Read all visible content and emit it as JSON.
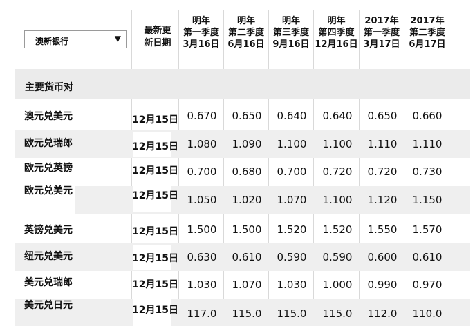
{
  "dropdown": {
    "selected": "澳新银行",
    "arrow_icon": "triangle-down-icon"
  },
  "headers": {
    "date": [
      "最新更",
      "新日期"
    ],
    "quarters": [
      [
        "明年",
        "第一季度",
        "3月16日"
      ],
      [
        "明年",
        "第二季度",
        "6月16日"
      ],
      [
        "明年",
        "第三季度",
        "9月16日"
      ],
      [
        "明年",
        "第四季度",
        "12月16日"
      ],
      [
        "2017年",
        "第一季度",
        "3月17日"
      ],
      [
        "2017年",
        "第二季度",
        "6月17日"
      ]
    ]
  },
  "section_label": "主要货币对",
  "rows": [
    {
      "pair": "澳元兑美元",
      "date": "12月15日",
      "values": [
        "0.670",
        "0.650",
        "0.640",
        "0.640",
        "0.650",
        "0.660"
      ]
    },
    {
      "pair": "欧元兑瑞郎",
      "date": "12月15日",
      "values": [
        "1.080",
        "1.090",
        "1.100",
        "1.100",
        "1.110",
        "1.110"
      ]
    },
    {
      "pair": "欧元兑英镑",
      "date": "12月15日",
      "values": [
        "0.700",
        "0.680",
        "0.700",
        "0.720",
        "0.720",
        "0.730"
      ]
    },
    {
      "pair": "欧元兑美元",
      "date": "12月15日",
      "values": [
        "1.050",
        "1.020",
        "1.070",
        "1.100",
        "1.120",
        "1.150"
      ]
    },
    {
      "pair": "英镑兑美元",
      "date": "12月15日",
      "values": [
        "1.500",
        "1.500",
        "1.520",
        "1.520",
        "1.550",
        "1.570"
      ]
    },
    {
      "pair": "纽元兑美元",
      "date": "12月15日",
      "values": [
        "0.630",
        "0.610",
        "0.590",
        "0.590",
        "0.600",
        "0.610"
      ]
    },
    {
      "pair": "美元兑瑞郎",
      "date": "12月15日",
      "values": [
        "1.030",
        "1.070",
        "1.030",
        "1.000",
        "0.990",
        "0.970"
      ]
    },
    {
      "pair": "美元兑日元",
      "date": "12月15日",
      "values": [
        "117.0",
        "115.0",
        "115.0",
        "115.0",
        "112.0",
        "110.0"
      ]
    }
  ]
}
